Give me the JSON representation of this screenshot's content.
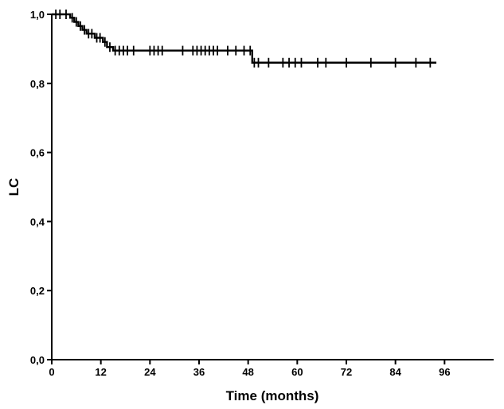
{
  "chart_data": {
    "type": "line",
    "title": "",
    "xlabel": "Time (months)",
    "ylabel": "LC",
    "xlim": [
      0,
      108
    ],
    "ylim": [
      0,
      1.0
    ],
    "xticks": [
      0,
      12,
      24,
      36,
      48,
      60,
      72,
      84,
      96
    ],
    "xtick_labels": [
      "0",
      "12",
      "24",
      "36",
      "48",
      "60",
      "72",
      "84",
      "96"
    ],
    "yticks": [
      0,
      0.2,
      0.4,
      0.6,
      0.8,
      1.0
    ],
    "ytick_labels": [
      "0,0",
      "0,2",
      "0,4",
      "0,6",
      "0,8",
      "1,0"
    ],
    "grid": false,
    "series": [
      {
        "style": "step",
        "color": "#000000",
        "steps": [
          {
            "x": 0,
            "y": 1.0
          },
          {
            "x": 4.5,
            "y": 0.99
          },
          {
            "x": 5.5,
            "y": 0.978
          },
          {
            "x": 6.5,
            "y": 0.966
          },
          {
            "x": 7.5,
            "y": 0.955
          },
          {
            "x": 8.5,
            "y": 0.944
          },
          {
            "x": 10.5,
            "y": 0.932
          },
          {
            "x": 12.5,
            "y": 0.92
          },
          {
            "x": 13.5,
            "y": 0.905
          },
          {
            "x": 15.0,
            "y": 0.895
          },
          {
            "x": 49.0,
            "y": 0.86
          },
          {
            "x": 94.0,
            "y": 0.86
          }
        ],
        "censored": [
          {
            "x": 1.0,
            "y": 1.0
          },
          {
            "x": 2.0,
            "y": 1.0
          },
          {
            "x": 3.5,
            "y": 1.0
          },
          {
            "x": 5.0,
            "y": 0.99
          },
          {
            "x": 6.0,
            "y": 0.978
          },
          {
            "x": 7.0,
            "y": 0.966
          },
          {
            "x": 8.0,
            "y": 0.955
          },
          {
            "x": 9.0,
            "y": 0.944
          },
          {
            "x": 9.8,
            "y": 0.944
          },
          {
            "x": 11.0,
            "y": 0.932
          },
          {
            "x": 11.8,
            "y": 0.932
          },
          {
            "x": 13.0,
            "y": 0.92
          },
          {
            "x": 14.2,
            "y": 0.905
          },
          {
            "x": 15.5,
            "y": 0.895
          },
          {
            "x": 16.5,
            "y": 0.895
          },
          {
            "x": 17.5,
            "y": 0.895
          },
          {
            "x": 18.5,
            "y": 0.895
          },
          {
            "x": 20.0,
            "y": 0.895
          },
          {
            "x": 24.0,
            "y": 0.895
          },
          {
            "x": 25.0,
            "y": 0.895
          },
          {
            "x": 26.0,
            "y": 0.895
          },
          {
            "x": 27.0,
            "y": 0.895
          },
          {
            "x": 32.0,
            "y": 0.895
          },
          {
            "x": 34.5,
            "y": 0.895
          },
          {
            "x": 35.5,
            "y": 0.895
          },
          {
            "x": 36.5,
            "y": 0.895
          },
          {
            "x": 37.5,
            "y": 0.895
          },
          {
            "x": 38.5,
            "y": 0.895
          },
          {
            "x": 39.5,
            "y": 0.895
          },
          {
            "x": 40.5,
            "y": 0.895
          },
          {
            "x": 43.0,
            "y": 0.895
          },
          {
            "x": 45.0,
            "y": 0.895
          },
          {
            "x": 47.0,
            "y": 0.895
          },
          {
            "x": 48.5,
            "y": 0.895
          },
          {
            "x": 49.5,
            "y": 0.86
          },
          {
            "x": 50.5,
            "y": 0.86
          },
          {
            "x": 53.0,
            "y": 0.86
          },
          {
            "x": 56.5,
            "y": 0.86
          },
          {
            "x": 58.0,
            "y": 0.86
          },
          {
            "x": 59.5,
            "y": 0.86
          },
          {
            "x": 61.0,
            "y": 0.86
          },
          {
            "x": 65.0,
            "y": 0.86
          },
          {
            "x": 67.0,
            "y": 0.86
          },
          {
            "x": 72.0,
            "y": 0.86
          },
          {
            "x": 78.0,
            "y": 0.86
          },
          {
            "x": 84.0,
            "y": 0.86
          },
          {
            "x": 89.0,
            "y": 0.86
          },
          {
            "x": 92.5,
            "y": 0.86
          }
        ]
      }
    ]
  }
}
